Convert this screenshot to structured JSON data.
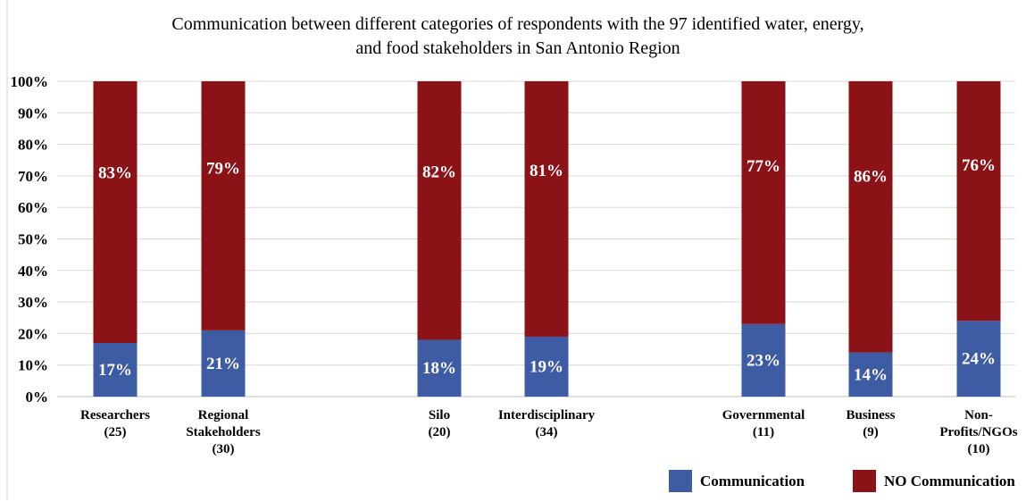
{
  "chart_data": {
    "type": "bar",
    "stacked": true,
    "percent": true,
    "title_lines": [
      "Communication between different categories of respondents with the 97 identified water, energy,",
      "and food stakeholders in San Antonio Region"
    ],
    "categories": [
      [
        "Researchers",
        "(25)"
      ],
      [
        "Regional",
        "Stakeholders",
        "(30)"
      ],
      [
        "Silo",
        "(20)"
      ],
      [
        "Interdisciplinary",
        "(34)"
      ],
      [
        "Governmental",
        "(11)"
      ],
      [
        "Business",
        "(9)"
      ],
      [
        "Non-",
        "Profits/NGOs",
        "(10)"
      ]
    ],
    "series": [
      {
        "name": "Communication",
        "color": "#3e5ca3",
        "values": [
          17,
          21,
          18,
          19,
          23,
          14,
          24
        ],
        "labels": [
          "17%",
          "21%",
          "18%",
          "19%",
          "23%",
          "14%",
          "24%"
        ]
      },
      {
        "name": "NO Communication",
        "color": "#8b1216",
        "values": [
          83,
          79,
          82,
          81,
          77,
          86,
          76
        ],
        "labels": [
          "83%",
          "79%",
          "82%",
          "81%",
          "77%",
          "86%",
          "76%"
        ]
      }
    ],
    "yticks": [
      0,
      10,
      20,
      30,
      40,
      50,
      60,
      70,
      80,
      90,
      100
    ],
    "ytick_labels": [
      "0%",
      "10%",
      "20%",
      "30%",
      "40%",
      "50%",
      "60%",
      "70%",
      "80%",
      "90%",
      "100%"
    ],
    "ylim": [
      0,
      100
    ],
    "grid": true,
    "legend_position": "bottom-right"
  }
}
